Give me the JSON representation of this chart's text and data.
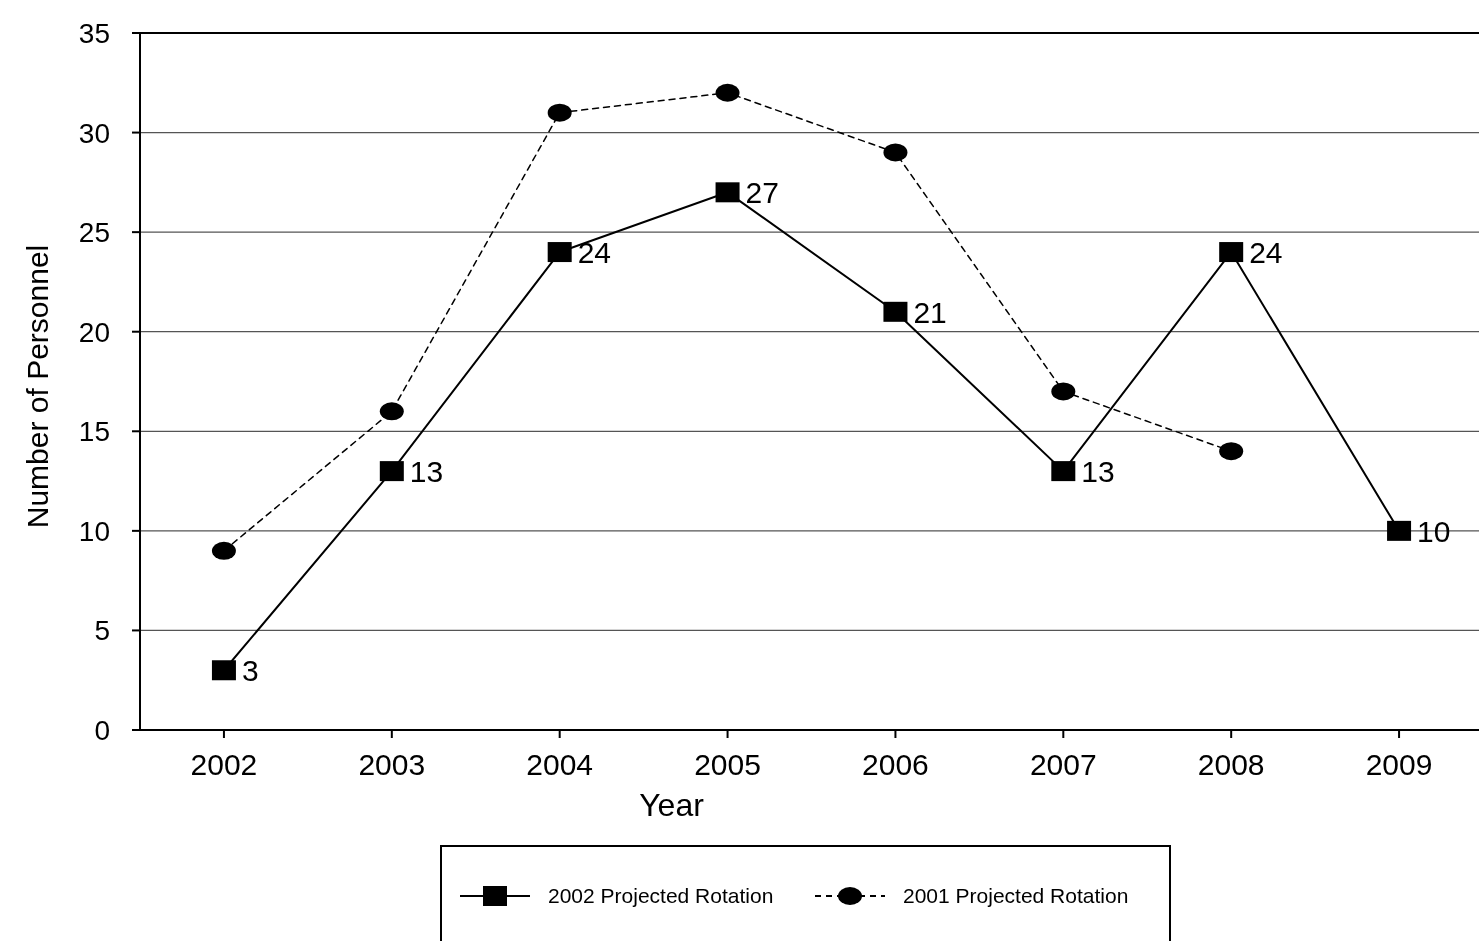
{
  "chart_data": {
    "type": "line",
    "xlabel": "Year",
    "ylabel": "Number of Personnel",
    "categories": [
      "2002",
      "2003",
      "2004",
      "2005",
      "2006",
      "2007",
      "2008",
      "2009"
    ],
    "series": [
      {
        "name": "2002 Projected Rotation",
        "color": "#000000",
        "marker": "square",
        "line_style": "solid",
        "values": [
          3,
          13,
          24,
          27,
          21,
          13,
          24,
          10
        ],
        "value_labels": [
          "3",
          "13",
          "24",
          "27",
          "21",
          "13",
          "24",
          "10"
        ]
      },
      {
        "name": "2001 Projected Rotation",
        "color": "#000000",
        "marker": "circle",
        "line_style": "dashed",
        "values": [
          9,
          16,
          31,
          32,
          29,
          17,
          14,
          null
        ]
      }
    ],
    "ylim": [
      0,
      35
    ],
    "yticks": [
      0,
      5,
      10,
      15,
      20,
      25,
      30,
      35
    ],
    "grid": "y",
    "legend": "bottom"
  }
}
